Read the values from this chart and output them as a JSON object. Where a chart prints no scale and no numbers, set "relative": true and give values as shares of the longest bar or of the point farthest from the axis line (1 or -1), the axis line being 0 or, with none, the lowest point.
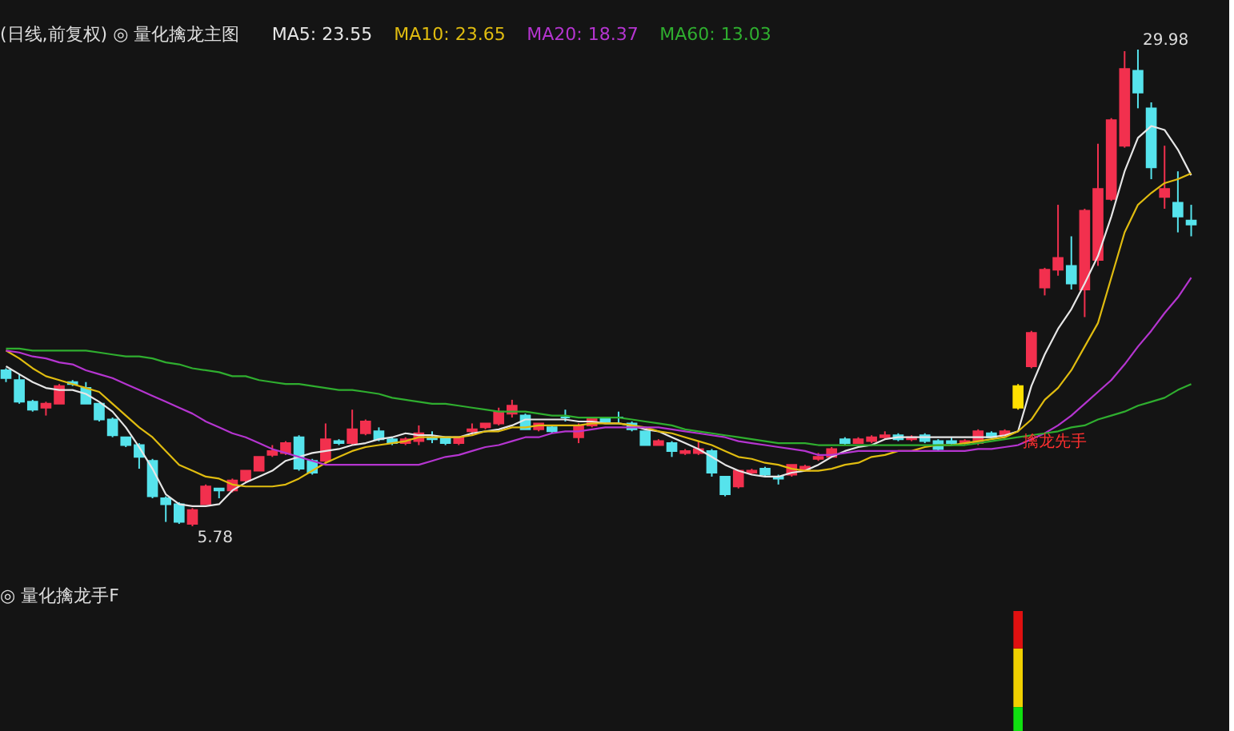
{
  "chart_data": [
    {
      "type": "candlestick",
      "title": "(日线,前复权) ◎ 量化擒龙主图",
      "legend": "top left",
      "tick_labels": false,
      "categories": [
        null,
        null,
        null,
        null,
        null,
        null,
        null,
        null,
        null,
        null,
        null,
        null,
        null,
        null,
        null,
        null,
        null,
        null,
        null,
        null,
        null,
        null,
        null,
        null,
        null,
        null,
        null,
        null,
        null,
        null,
        null,
        null,
        null,
        null,
        null,
        null,
        null,
        null,
        null,
        null,
        null,
        null,
        null,
        null,
        null,
        null,
        null,
        null,
        null,
        null,
        null,
        null,
        null,
        null,
        null,
        null,
        null,
        null,
        null,
        null,
        null,
        null,
        null,
        null,
        null,
        null,
        null,
        null,
        null,
        null,
        null,
        null,
        null,
        null,
        null,
        null,
        null,
        null,
        null,
        null,
        null,
        null,
        null,
        null,
        null,
        null,
        null,
        null,
        null,
        null
      ],
      "ohlc": [
        [
          13.7,
          13.8,
          13.1,
          13.3
        ],
        [
          13.2,
          13.5,
          12.0,
          12.1
        ],
        [
          12.1,
          12.2,
          11.6,
          11.7
        ],
        [
          11.8,
          12.1,
          11.4,
          12.0
        ],
        [
          12.0,
          13.0,
          12.0,
          12.9
        ],
        [
          13.1,
          13.2,
          12.9,
          13.0
        ],
        [
          12.8,
          13.1,
          12.0,
          12.0
        ],
        [
          12.0,
          12.0,
          11.1,
          11.2
        ],
        [
          11.2,
          11.3,
          10.3,
          10.4
        ],
        [
          10.3,
          10.3,
          9.8,
          9.9
        ],
        [
          9.9,
          10.0,
          8.7,
          9.3
        ],
        [
          9.1,
          9.2,
          7.2,
          7.3
        ],
        [
          7.2,
          7.3,
          6.0,
          6.9
        ],
        [
          6.9,
          7.0,
          5.9,
          6.0
        ],
        [
          5.9,
          6.7,
          5.78,
          6.6
        ],
        [
          6.9,
          7.9,
          6.9,
          7.8
        ],
        [
          7.7,
          7.7,
          7.2,
          7.6
        ],
        [
          7.6,
          8.2,
          7.5,
          8.1
        ],
        [
          8.1,
          8.6,
          8.0,
          8.6
        ],
        [
          8.6,
          9.3,
          8.6,
          9.3
        ],
        [
          9.4,
          9.9,
          9.3,
          9.6
        ],
        [
          9.5,
          10.1,
          9.4,
          10.0
        ],
        [
          10.3,
          10.4,
          8.6,
          8.7
        ],
        [
          9.1,
          9.2,
          8.4,
          8.5
        ],
        [
          9.1,
          11.0,
          8.9,
          10.2
        ],
        [
          10.1,
          10.2,
          9.9,
          10.0
        ],
        [
          10.0,
          11.7,
          9.9,
          10.7
        ],
        [
          10.5,
          11.2,
          10.4,
          11.1
        ],
        [
          10.6,
          10.8,
          10.1,
          10.2
        ],
        [
          10.2,
          10.3,
          9.9,
          10.0
        ],
        [
          10.0,
          10.3,
          9.9,
          10.2
        ],
        [
          10.1,
          10.9,
          9.9,
          10.5
        ],
        [
          10.3,
          10.6,
          10.0,
          10.2
        ],
        [
          10.3,
          10.3,
          9.9,
          10.0
        ],
        [
          10.0,
          10.3,
          9.9,
          10.3
        ],
        [
          10.6,
          11.0,
          10.4,
          10.7
        ],
        [
          10.8,
          11.0,
          10.7,
          11.0
        ],
        [
          11.0,
          11.8,
          10.9,
          11.6
        ],
        [
          11.5,
          12.2,
          11.3,
          11.9
        ],
        [
          11.4,
          11.5,
          10.7,
          10.7
        ],
        [
          10.7,
          11.0,
          10.6,
          11.0
        ],
        [
          10.8,
          10.9,
          10.5,
          10.6
        ],
        [
          11.3,
          11.7,
          11.1,
          11.3
        ],
        [
          10.3,
          11.0,
          10.0,
          10.9
        ],
        [
          10.9,
          11.3,
          10.8,
          11.3
        ],
        [
          11.3,
          11.3,
          11.0,
          11.1
        ],
        [
          11.3,
          11.6,
          11.0,
          11.3
        ],
        [
          11.0,
          11.1,
          10.6,
          10.7
        ],
        [
          10.6,
          10.6,
          9.9,
          9.9
        ],
        [
          9.9,
          10.2,
          9.9,
          10.1
        ],
        [
          10.0,
          10.1,
          9.3,
          9.6
        ],
        [
          9.5,
          9.7,
          9.4,
          9.6
        ],
        [
          9.5,
          10.1,
          9.4,
          9.7
        ],
        [
          9.6,
          9.7,
          8.3,
          8.5
        ],
        [
          8.3,
          8.3,
          7.3,
          7.4
        ],
        [
          7.8,
          8.6,
          7.7,
          8.6
        ],
        [
          8.5,
          8.7,
          8.4,
          8.6
        ],
        [
          8.7,
          8.8,
          8.3,
          8.4
        ],
        [
          8.3,
          8.4,
          7.9,
          8.2
        ],
        [
          8.4,
          8.9,
          8.3,
          8.9
        ],
        [
          8.6,
          8.9,
          8.6,
          8.8
        ],
        [
          9.2,
          9.5,
          9.1,
          9.3
        ],
        [
          9.3,
          9.8,
          9.3,
          9.7
        ],
        [
          10.2,
          10.3,
          9.9,
          10.0
        ],
        [
          10.0,
          10.3,
          10.0,
          10.2
        ],
        [
          10.1,
          10.4,
          10.0,
          10.3
        ],
        [
          10.3,
          10.6,
          10.2,
          10.4
        ],
        [
          10.4,
          10.5,
          10.1,
          10.2
        ],
        [
          10.2,
          10.4,
          10.1,
          10.3
        ],
        [
          10.4,
          10.5,
          10.0,
          10.1
        ],
        [
          10.1,
          10.2,
          9.6,
          9.7
        ],
        [
          10.1,
          10.3,
          9.9,
          10.0
        ],
        [
          10.0,
          10.2,
          9.9,
          10.1
        ],
        [
          10.0,
          10.7,
          9.9,
          10.6
        ],
        [
          10.5,
          10.6,
          10.3,
          10.3
        ],
        [
          10.4,
          10.7,
          10.3,
          10.6
        ],
        [
          11.8,
          13.0,
          11.7,
          12.9
        ],
        [
          13.9,
          15.7,
          13.8,
          15.6
        ],
        [
          17.9,
          18.9,
          17.5,
          18.8
        ],
        [
          18.8,
          22.1,
          18.5,
          19.4
        ],
        [
          19.0,
          20.5,
          17.8,
          18.1
        ],
        [
          17.8,
          21.9,
          16.4,
          21.8
        ],
        [
          19.3,
          25.2,
          19.0,
          22.9
        ],
        [
          22.4,
          26.5,
          22.3,
          26.4
        ],
        [
          25.1,
          29.9,
          25.0,
          29.0
        ],
        [
          28.9,
          29.98,
          27.0,
          27.8
        ],
        [
          27.0,
          27.3,
          23.4,
          24.0
        ],
        [
          22.5,
          25.1,
          21.9,
          22.9
        ],
        [
          22.2,
          23.8,
          20.7,
          21.5
        ],
        [
          21.3,
          22.1,
          20.5,
          21.1
        ]
      ],
      "colors": [
        "#56e3ec",
        "#56e3ec",
        "#56e3ec",
        "#f2304e",
        "#f2304e",
        "#56e3ec",
        "#56e3ec",
        "#56e3ec",
        "#56e3ec",
        "#56e3ec",
        "#56e3ec",
        "#56e3ec",
        "#56e3ec",
        "#56e3ec",
        "#f2304e",
        "#f2304e",
        "#56e3ec",
        "#f2304e",
        "#f2304e",
        "#f2304e",
        "#f2304e",
        "#f2304e",
        "#56e3ec",
        "#56e3ec",
        "#f2304e",
        "#56e3ec",
        "#f2304e",
        "#f2304e",
        "#56e3ec",
        "#56e3ec",
        "#f2304e",
        "#f2304e",
        "#56e3ec",
        "#56e3ec",
        "#f2304e",
        "#f2304e",
        "#f2304e",
        "#f2304e",
        "#f2304e",
        "#56e3ec",
        "#f2304e",
        "#56e3ec",
        "#56e3ec",
        "#f2304e",
        "#f2304e",
        "#56e3ec",
        "#56e3ec",
        "#56e3ec",
        "#56e3ec",
        "#f2304e",
        "#56e3ec",
        "#f2304e",
        "#f2304e",
        "#56e3ec",
        "#56e3ec",
        "#f2304e",
        "#f2304e",
        "#56e3ec",
        "#56e3ec",
        "#f2304e",
        "#f2304e",
        "#f2304e",
        "#f2304e",
        "#56e3ec",
        "#f2304e",
        "#f2304e",
        "#f2304e",
        "#56e3ec",
        "#f2304e",
        "#56e3ec",
        "#56e3ec",
        "#56e3ec",
        "#f2304e",
        "#f2304e",
        "#56e3ec",
        "#f2304e",
        "#ffe000",
        "#f2304e",
        "#f2304e",
        "#f2304e",
        "#56e3ec",
        "#f2304e",
        "#f2304e",
        "#f2304e",
        "#f2304e",
        "#56e3ec",
        "#56e3ec",
        "#f2304e",
        "#56e3ec",
        "#56e3ec"
      ],
      "series": [
        {
          "name": "MA5: 23.55",
          "type": "line",
          "color": "#e6e6e6",
          "values": [
            13.9,
            13.5,
            13.1,
            12.8,
            12.7,
            12.7,
            12.5,
            12.1,
            11.6,
            10.8,
            9.8,
            8.7,
            7.4,
            6.9,
            6.8,
            6.8,
            6.9,
            7.6,
            8.0,
            8.3,
            8.6,
            9.1,
            9.3,
            9.5,
            9.6,
            9.7,
            9.9,
            10.0,
            10.2,
            10.3,
            10.5,
            10.4,
            10.4,
            10.3,
            10.3,
            10.5,
            10.6,
            10.7,
            10.9,
            11.2,
            11.2,
            11.2,
            11.2,
            11.1,
            11.1,
            11.0,
            11.0,
            10.9,
            10.7,
            10.6,
            10.3,
            10.0,
            9.7,
            9.3,
            8.9,
            8.6,
            8.4,
            8.3,
            8.3,
            8.5,
            8.6,
            8.9,
            9.3,
            9.6,
            9.8,
            9.9,
            10.2,
            10.3,
            10.3,
            10.3,
            10.3,
            10.3,
            10.3,
            10.3,
            10.3,
            10.4,
            10.6,
            12.9,
            14.5,
            15.8,
            16.8,
            18.1,
            19.5,
            21.5,
            23.8,
            25.5,
            26.1,
            25.9,
            24.9,
            23.6
          ]
        },
        {
          "name": "MA10: 23.65",
          "type": "line",
          "color": "#e0bc10",
          "values": [
            14.7,
            14.3,
            13.8,
            13.4,
            13.2,
            13.0,
            12.8,
            12.6,
            12.0,
            11.4,
            10.8,
            10.3,
            9.6,
            8.9,
            8.6,
            8.3,
            8.2,
            7.9,
            7.8,
            7.8,
            7.8,
            7.9,
            8.2,
            8.6,
            9.0,
            9.3,
            9.6,
            9.8,
            9.9,
            10.0,
            10.1,
            10.3,
            10.3,
            10.3,
            10.3,
            10.4,
            10.6,
            10.6,
            10.8,
            10.8,
            10.9,
            10.9,
            10.9,
            10.9,
            11.0,
            11.0,
            11.0,
            10.9,
            10.8,
            10.6,
            10.5,
            10.3,
            10.1,
            9.9,
            9.6,
            9.3,
            9.2,
            9.0,
            8.9,
            8.7,
            8.6,
            8.6,
            8.7,
            8.9,
            9.0,
            9.3,
            9.4,
            9.6,
            9.6,
            9.8,
            9.9,
            9.9,
            10.0,
            10.1,
            10.2,
            10.3,
            10.6,
            11.2,
            12.2,
            12.8,
            13.7,
            14.9,
            16.1,
            18.4,
            20.7,
            22.1,
            22.7,
            23.2,
            23.4,
            23.7
          ]
        },
        {
          "name": "MA20: 18.37",
          "type": "line",
          "color": "#b535d0",
          "values": [
            14.7,
            14.6,
            14.4,
            14.3,
            14.1,
            14.0,
            13.7,
            13.5,
            13.3,
            13.0,
            12.7,
            12.4,
            12.1,
            11.8,
            11.5,
            11.1,
            10.8,
            10.5,
            10.3,
            10.0,
            9.7,
            9.5,
            9.3,
            9.1,
            8.9,
            8.9,
            8.9,
            8.9,
            8.9,
            8.9,
            8.9,
            8.9,
            9.1,
            9.3,
            9.4,
            9.6,
            9.8,
            9.9,
            10.1,
            10.3,
            10.3,
            10.5,
            10.6,
            10.6,
            10.7,
            10.8,
            10.8,
            10.8,
            10.8,
            10.8,
            10.7,
            10.6,
            10.5,
            10.4,
            10.3,
            10.1,
            10.0,
            9.9,
            9.8,
            9.7,
            9.6,
            9.4,
            9.4,
            9.5,
            9.6,
            9.6,
            9.6,
            9.6,
            9.6,
            9.6,
            9.6,
            9.6,
            9.6,
            9.7,
            9.7,
            9.8,
            9.9,
            10.2,
            10.5,
            10.9,
            11.4,
            12.0,
            12.6,
            13.2,
            14.0,
            14.9,
            15.7,
            16.6,
            17.4,
            18.4
          ]
        },
        {
          "name": "MA60: 13.03",
          "type": "line",
          "color": "#2fae2f",
          "values": [
            14.8,
            14.8,
            14.7,
            14.7,
            14.7,
            14.7,
            14.7,
            14.6,
            14.5,
            14.4,
            14.4,
            14.3,
            14.1,
            14.0,
            13.8,
            13.7,
            13.6,
            13.4,
            13.4,
            13.2,
            13.1,
            13.0,
            13.0,
            12.9,
            12.8,
            12.7,
            12.7,
            12.6,
            12.5,
            12.3,
            12.2,
            12.1,
            12.0,
            12.0,
            11.9,
            11.8,
            11.7,
            11.6,
            11.6,
            11.6,
            11.5,
            11.4,
            11.4,
            11.3,
            11.3,
            11.3,
            11.3,
            11.2,
            11.1,
            11.0,
            10.9,
            10.7,
            10.6,
            10.5,
            10.4,
            10.3,
            10.2,
            10.1,
            10.0,
            10.0,
            10.0,
            9.9,
            9.9,
            9.9,
            9.9,
            9.9,
            9.9,
            9.9,
            9.9,
            9.9,
            9.9,
            9.9,
            9.9,
            10.0,
            10.1,
            10.2,
            10.3,
            10.4,
            10.5,
            10.6,
            10.8,
            10.9,
            11.2,
            11.4,
            11.6,
            11.9,
            12.1,
            12.3,
            12.7,
            13.0
          ]
        }
      ],
      "annotations": [
        "29.98",
        "5.78",
        "擒龙先手"
      ]
    },
    {
      "type": "bar",
      "title": "◎ 量化擒龙手F",
      "relative": true,
      "stacked": true,
      "tick_labels": false,
      "categories": [
        null,
        null,
        null,
        null,
        null,
        null,
        null,
        null,
        null,
        null,
        null,
        null,
        null,
        null,
        null,
        null,
        null,
        null,
        null,
        null,
        null,
        null,
        null,
        null,
        null,
        null,
        null,
        null,
        null,
        null,
        null,
        null,
        null,
        null,
        null,
        null,
        null,
        null,
        null,
        null,
        null,
        null,
        null,
        null,
        null,
        null,
        null,
        null,
        null,
        null,
        null,
        null,
        null,
        null,
        null,
        null,
        null,
        null,
        null,
        null,
        null,
        null,
        null,
        null,
        null,
        null,
        null,
        null,
        null,
        null,
        null,
        null,
        null,
        null,
        null,
        null,
        null,
        null,
        null,
        null,
        null,
        null,
        null,
        null,
        null,
        null,
        null,
        null,
        null,
        null
      ],
      "series": [
        {
          "color": "#10e010",
          "values": [
            null,
            null,
            null,
            null,
            null,
            null,
            null,
            null,
            null,
            null,
            null,
            null,
            null,
            null,
            null,
            null,
            null,
            null,
            null,
            null,
            null,
            null,
            null,
            null,
            null,
            null,
            null,
            null,
            null,
            null,
            null,
            null,
            null,
            null,
            null,
            null,
            null,
            null,
            null,
            null,
            null,
            null,
            null,
            null,
            null,
            null,
            null,
            null,
            null,
            null,
            null,
            null,
            null,
            null,
            null,
            null,
            null,
            null,
            null,
            null,
            null,
            null,
            null,
            null,
            null,
            null,
            null,
            null,
            null,
            null,
            null,
            null,
            null,
            null,
            null,
            null,
            0.23,
            null,
            null,
            null,
            null,
            null,
            null,
            null,
            null,
            null,
            null,
            null,
            null,
            null
          ]
        },
        {
          "color": "#f0d000",
          "values": [
            null,
            null,
            null,
            null,
            null,
            null,
            null,
            null,
            null,
            null,
            null,
            null,
            null,
            null,
            null,
            null,
            null,
            null,
            null,
            null,
            null,
            null,
            null,
            null,
            null,
            null,
            null,
            null,
            null,
            null,
            null,
            null,
            null,
            null,
            null,
            null,
            null,
            null,
            null,
            null,
            null,
            null,
            null,
            null,
            null,
            null,
            null,
            null,
            null,
            null,
            null,
            null,
            null,
            null,
            null,
            null,
            null,
            null,
            null,
            null,
            null,
            null,
            null,
            null,
            null,
            null,
            null,
            null,
            null,
            null,
            null,
            null,
            null,
            null,
            null,
            null,
            0.47,
            null,
            null,
            null,
            null,
            null,
            null,
            null,
            null,
            null,
            null,
            null,
            null,
            null
          ]
        },
        {
          "color": "#e01010",
          "values": [
            null,
            null,
            null,
            null,
            null,
            null,
            null,
            null,
            null,
            null,
            null,
            null,
            null,
            null,
            null,
            null,
            null,
            null,
            null,
            null,
            null,
            null,
            null,
            null,
            null,
            null,
            null,
            null,
            null,
            null,
            null,
            null,
            null,
            null,
            null,
            null,
            null,
            null,
            null,
            null,
            null,
            null,
            null,
            null,
            null,
            null,
            null,
            null,
            null,
            null,
            null,
            null,
            null,
            null,
            null,
            null,
            null,
            null,
            null,
            null,
            null,
            null,
            null,
            null,
            null,
            null,
            null,
            null,
            null,
            null,
            null,
            null,
            null,
            null,
            null,
            null,
            0.3,
            null,
            null,
            null,
            null,
            null,
            null,
            null,
            null,
            null,
            null,
            null,
            null,
            null
          ]
        }
      ]
    }
  ]
}
